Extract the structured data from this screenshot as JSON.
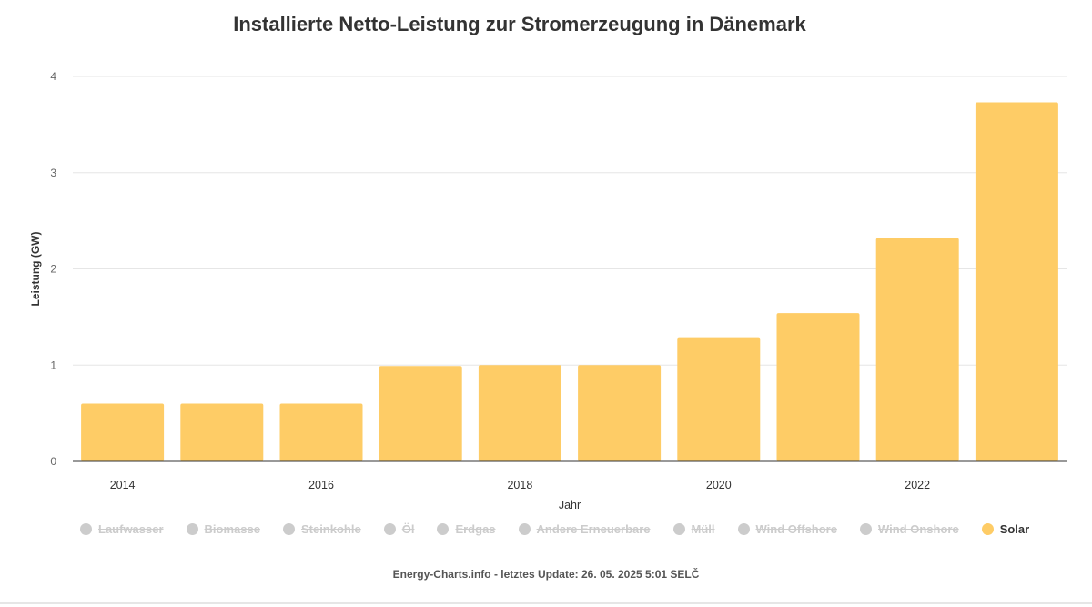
{
  "chart_data": {
    "type": "bar",
    "title": "Installierte Netto-Leistung zur Stromerzeugung in Dänemark",
    "xlabel": "Jahr",
    "ylabel": "Leistung (GW)",
    "ylim": [
      0,
      4
    ],
    "yticks": [
      "0",
      "1",
      "2",
      "3",
      "4"
    ],
    "categories": [
      "2014",
      "2015",
      "2016",
      "2017",
      "2018",
      "2019",
      "2020",
      "2021",
      "2022",
      "2023"
    ],
    "xtick_labels": [
      "2014",
      "2016",
      "2018",
      "2020",
      "2022"
    ],
    "series": [
      {
        "name": "Solar",
        "color": "#fecc66",
        "values": [
          0.6,
          0.6,
          0.6,
          0.99,
          1.0,
          1.0,
          1.29,
          1.54,
          2.32,
          3.73
        ]
      }
    ],
    "grid": true,
    "legend_position": "bottom"
  },
  "legend": [
    {
      "label": "Laufwasser",
      "active": false
    },
    {
      "label": "Biomasse",
      "active": false
    },
    {
      "label": "Steinkohle",
      "active": false
    },
    {
      "label": "Öl",
      "active": false
    },
    {
      "label": "Erdgas",
      "active": false
    },
    {
      "label": "Andere Erneuerbare",
      "active": false
    },
    {
      "label": "Müll",
      "active": false
    },
    {
      "label": "Wind Offshore",
      "active": false
    },
    {
      "label": "Wind Onshore",
      "active": false
    },
    {
      "label": "Solar",
      "active": true
    }
  ],
  "colors": {
    "inactive": "#cccccc",
    "solar": "#fecc66",
    "text": "#333333",
    "grid": "#e6e6e6"
  },
  "credits": "Energy-Charts.info - letztes Update: 26. 05. 2025 5:01 SELČ"
}
